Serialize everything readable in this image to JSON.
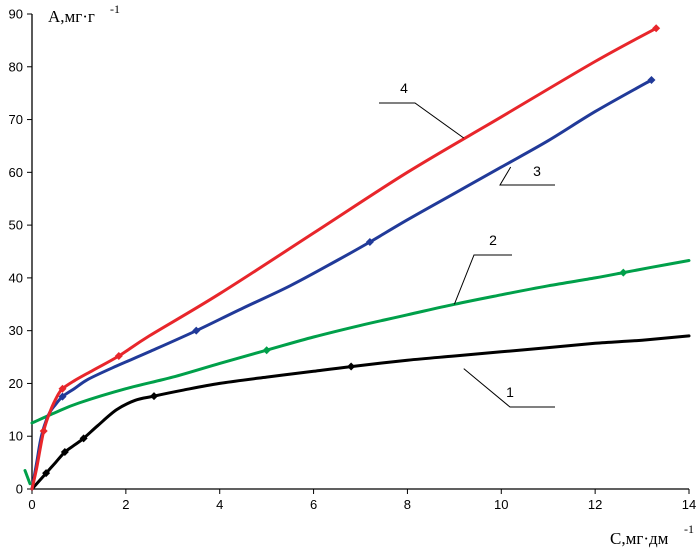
{
  "chart_data": {
    "type": "line",
    "ylabel": "A,мг·г",
    "ylabel_exponent": "-1",
    "xlabel": "C,мг·дм",
    "xlabel_exponent": "-1",
    "xlim": [
      0,
      14
    ],
    "ylim": [
      0,
      90
    ],
    "x_ticks": [
      0,
      2,
      4,
      6,
      8,
      10,
      12,
      14
    ],
    "y_ticks": [
      0,
      10,
      20,
      30,
      40,
      50,
      60,
      70,
      80,
      90
    ],
    "grid": false,
    "series": [
      {
        "name": "1",
        "color": "#000000",
        "x": [
          0.0,
          0.1,
          0.3,
          0.5,
          0.7,
          0.9,
          1.1,
          1.4,
          1.8,
          2.2,
          2.6,
          3.2,
          4.0,
          5.0,
          6.0,
          6.8,
          8.0,
          9.0,
          10.0,
          11.0,
          12.0,
          13.0,
          14.0
        ],
        "y": [
          0.0,
          1.0,
          3.0,
          5.0,
          7.0,
          8.3,
          9.6,
          12.0,
          15.0,
          16.8,
          17.6,
          18.7,
          20.0,
          21.2,
          22.3,
          23.2,
          24.4,
          25.2,
          26.0,
          26.8,
          27.6,
          28.2,
          29.0
        ],
        "markers_x": [
          0.3,
          0.7,
          1.1,
          2.6,
          6.8
        ]
      },
      {
        "name": "2",
        "color": "#00a04a",
        "x": [
          0.0,
          0.5,
          1.0,
          2.0,
          3.0,
          4.0,
          5.0,
          6.0,
          7.0,
          8.0,
          9.0,
          10.0,
          11.0,
          12.0,
          12.6,
          13.2,
          14.0
        ],
        "y": [
          12.5,
          14.5,
          16.3,
          19.0,
          21.2,
          23.8,
          26.3,
          28.8,
          31.0,
          33.0,
          35.0,
          36.8,
          38.5,
          40.0,
          41.0,
          42.0,
          43.3
        ],
        "markers_x": [
          5.0,
          12.6
        ]
      },
      {
        "name": "3",
        "color": "#213a99",
        "x": [
          0.0,
          0.1,
          0.2,
          0.35,
          0.5,
          0.65,
          0.9,
          1.2,
          1.8,
          2.5,
          3.5,
          4.5,
          5.5,
          6.5,
          7.2,
          8.0,
          9.0,
          10.0,
          11.0,
          12.0,
          13.2
        ],
        "y": [
          0.0,
          5.0,
          10.0,
          14.0,
          16.0,
          17.5,
          19.0,
          20.8,
          23.3,
          26.0,
          30.0,
          34.3,
          38.5,
          43.3,
          46.8,
          51.0,
          56.0,
          61.0,
          66.0,
          71.5,
          77.5
        ],
        "markers_x": [
          0.65,
          3.5,
          7.2,
          13.2
        ]
      },
      {
        "name": "4",
        "color": "#e8262b",
        "x": [
          0.0,
          0.1,
          0.25,
          0.4,
          0.55,
          0.65,
          0.9,
          1.3,
          1.85,
          2.5,
          4.0,
          6.0,
          8.0,
          10.0,
          12.0,
          13.3
        ],
        "y": [
          0.0,
          4.0,
          11.0,
          15.0,
          17.8,
          19.0,
          20.5,
          22.5,
          25.2,
          29.0,
          37.0,
          48.5,
          60.0,
          70.5,
          81.0,
          87.3
        ],
        "markers_x": [
          0.25,
          0.65,
          1.85,
          13.3
        ]
      }
    ],
    "labels": [
      {
        "text": "1",
        "series": "1",
        "anchor": [
          9.2,
          22.8
        ]
      },
      {
        "text": "2",
        "series": "2",
        "anchor": [
          9.0,
          35.0
        ]
      },
      {
        "text": "3",
        "series": "3",
        "anchor": [
          10.2,
          61.0
        ]
      },
      {
        "text": "4",
        "series": "4",
        "anchor": [
          9.2,
          66.5
        ]
      }
    ]
  }
}
